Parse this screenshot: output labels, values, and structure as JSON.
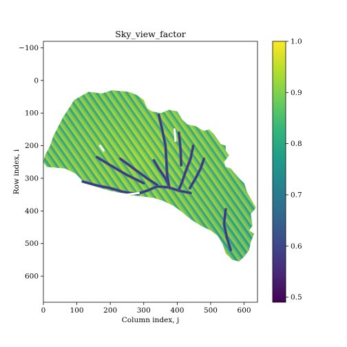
{
  "chart_data": {
    "type": "heatmap",
    "title": "Sky_view_factor",
    "xlabel": "Column index, j",
    "ylabel": "Row index, i",
    "xlim": [
      0,
      640
    ],
    "ylim": [
      -120,
      680
    ],
    "y_axis_inverted": true,
    "x_ticks": [
      0,
      100,
      200,
      300,
      400,
      500,
      600
    ],
    "x_tick_labels": [
      "0",
      "100",
      "200",
      "300",
      "400",
      "500",
      "600"
    ],
    "y_ticks": [
      -100,
      0,
      100,
      200,
      300,
      400,
      500,
      600
    ],
    "y_tick_labels": [
      "−100",
      "0",
      "100",
      "200",
      "300",
      "400",
      "500",
      "600"
    ],
    "colormap": "viridis",
    "colorbar": {
      "range": [
        0.49,
        1.0
      ],
      "ticks": [
        0.5,
        0.6,
        0.7,
        0.8,
        0.9,
        1.0
      ],
      "tick_labels": [
        "0.5",
        "0.6",
        "0.7",
        "0.8",
        "0.9",
        "1.0"
      ]
    },
    "region_outline": [
      [
        92,
        60
      ],
      [
        135,
        35
      ],
      [
        175,
        40
      ],
      [
        205,
        30
      ],
      [
        255,
        35
      ],
      [
        280,
        45
      ],
      [
        300,
        60
      ],
      [
        310,
        85
      ],
      [
        325,
        95
      ],
      [
        352,
        100
      ],
      [
        375,
        90
      ],
      [
        400,
        95
      ],
      [
        415,
        120
      ],
      [
        430,
        135
      ],
      [
        455,
        140
      ],
      [
        480,
        155
      ],
      [
        495,
        150
      ],
      [
        510,
        165
      ],
      [
        530,
        195
      ],
      [
        545,
        200
      ],
      [
        545,
        215
      ],
      [
        555,
        230
      ],
      [
        540,
        250
      ],
      [
        545,
        265
      ],
      [
        560,
        270
      ],
      [
        585,
        300
      ],
      [
        600,
        315
      ],
      [
        610,
        345
      ],
      [
        635,
        390
      ],
      [
        620,
        410
      ],
      [
        625,
        445
      ],
      [
        615,
        460
      ],
      [
        630,
        470
      ],
      [
        620,
        495
      ],
      [
        615,
        520
      ],
      [
        600,
        540
      ],
      [
        585,
        555
      ],
      [
        565,
        550
      ],
      [
        545,
        530
      ],
      [
        535,
        500
      ],
      [
        520,
        475
      ],
      [
        500,
        460
      ],
      [
        470,
        445
      ],
      [
        440,
        425
      ],
      [
        410,
        400
      ],
      [
        390,
        385
      ],
      [
        360,
        370
      ],
      [
        330,
        360
      ],
      [
        290,
        355
      ],
      [
        240,
        350
      ],
      [
        210,
        340
      ],
      [
        175,
        335
      ],
      [
        150,
        320
      ],
      [
        125,
        315
      ],
      [
        110,
        300
      ],
      [
        95,
        285
      ],
      [
        65,
        270
      ],
      [
        10,
        265
      ],
      [
        0,
        250
      ],
      [
        5,
        230
      ],
      [
        20,
        200
      ],
      [
        30,
        170
      ],
      [
        45,
        140
      ],
      [
        60,
        110
      ],
      [
        80,
        80
      ]
    ],
    "channels": [
      [
        [
          118,
          310
        ],
        [
          160,
          322
        ],
        [
          200,
          330
        ],
        [
          240,
          342
        ],
        [
          280,
          348
        ],
        [
          310,
          338
        ],
        [
          340,
          325
        ],
        [
          375,
          328
        ],
        [
          405,
          338
        ],
        [
          440,
          345
        ]
      ],
      [
        [
          330,
          245
        ],
        [
          345,
          270
        ],
        [
          365,
          300
        ],
        [
          378,
          330
        ]
      ],
      [
        [
          345,
          105
        ],
        [
          355,
          150
        ],
        [
          365,
          200
        ],
        [
          368,
          250
        ],
        [
          370,
          290
        ],
        [
          375,
          320
        ]
      ],
      [
        [
          448,
          200
        ],
        [
          440,
          240
        ],
        [
          425,
          280
        ],
        [
          415,
          310
        ],
        [
          405,
          335
        ]
      ],
      [
        [
          480,
          240
        ],
        [
          470,
          270
        ],
        [
          455,
          300
        ],
        [
          438,
          330
        ]
      ],
      [
        [
          405,
          160
        ],
        [
          410,
          210
        ],
        [
          412,
          260
        ]
      ],
      [
        [
          230,
          240
        ],
        [
          270,
          270
        ],
        [
          310,
          300
        ],
        [
          340,
          320
        ]
      ],
      [
        [
          160,
          235
        ],
        [
          200,
          260
        ],
        [
          250,
          290
        ],
        [
          300,
          315
        ]
      ],
      [
        [
          545,
          395
        ],
        [
          540,
          440
        ],
        [
          548,
          480
        ],
        [
          560,
          520
        ]
      ]
    ],
    "gaps": [
      [
        [
          118,
          318
        ],
        [
          160,
          330
        ],
        [
          210,
          345
        ],
        [
          250,
          350
        ],
        [
          285,
          345
        ]
      ],
      [
        [
          392,
          150
        ],
        [
          395,
          185
        ]
      ],
      [
        [
          170,
          200
        ],
        [
          180,
          215
        ]
      ]
    ]
  }
}
